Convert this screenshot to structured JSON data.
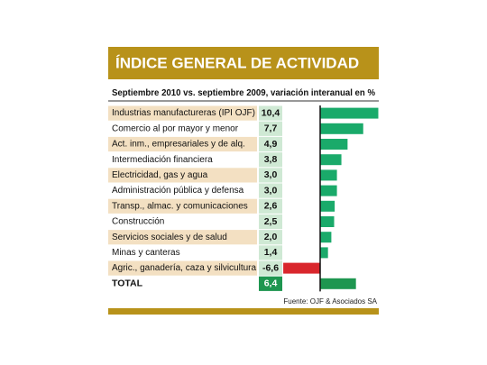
{
  "chart_data": {
    "type": "bar",
    "orientation": "horizontal",
    "title": "ÍNDICE GENERAL DE ACTIVIDAD",
    "subtitle": "Septiembre 2010 vs. septiembre 2009, variación interanual en %",
    "categories": [
      "Industrias manufactureras (IPI OJF)",
      "Comercio al por mayor y menor",
      "Act. inm., empresariales y de alq.",
      "Intermediación financiera",
      "Electricidad, gas y agua",
      "Administración pública y defensa",
      "Transp., almac. y comunicaciones",
      "Construcción",
      "Servicios sociales y de salud",
      "Minas y canteras",
      "Agric., ganadería, caza y silvicultura"
    ],
    "values": [
      10.4,
      7.7,
      4.9,
      3.8,
      3.0,
      3.0,
      2.6,
      2.5,
      2.0,
      1.4,
      -6.6
    ],
    "value_labels": [
      "10,4",
      "7,7",
      "4,9",
      "3,8",
      "3,0",
      "3,0",
      "2,6",
      "2,5",
      "2,0",
      "1,4",
      "-6,6"
    ],
    "positive_color": "#1aaa6a",
    "negative_color": "#d9262c",
    "total": {
      "label": "TOTAL",
      "value": 6.4,
      "value_label": "6,4",
      "color": "#1e9650"
    },
    "source": "Fuente: OJF & Asociados SA"
  }
}
